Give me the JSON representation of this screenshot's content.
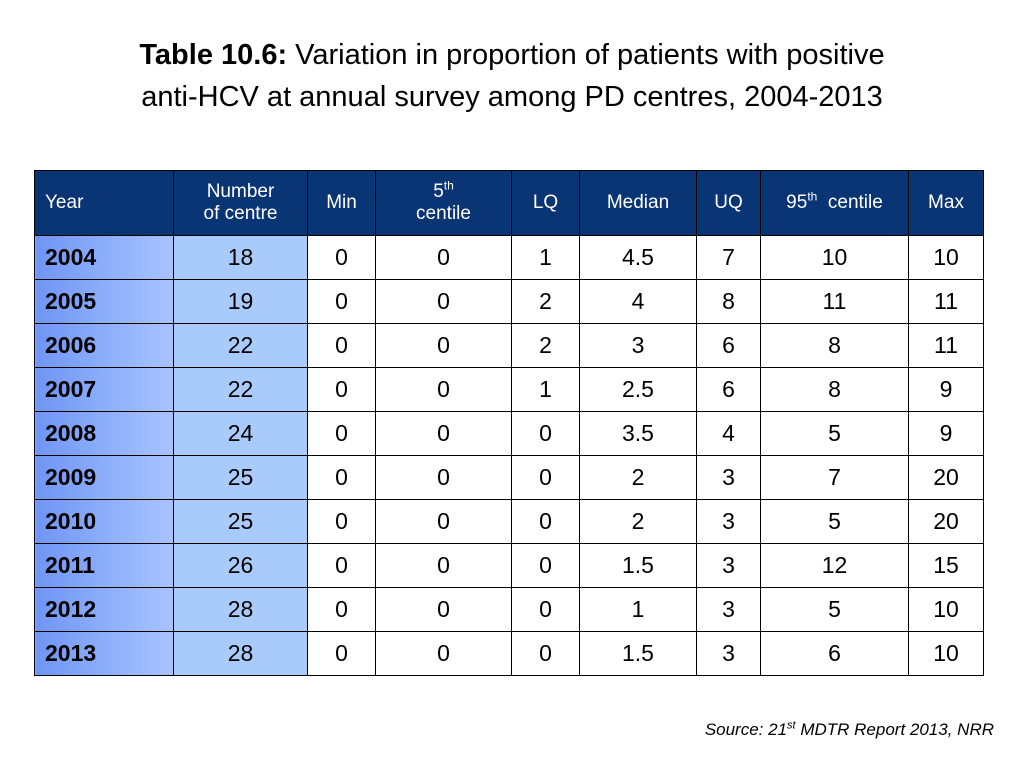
{
  "title": {
    "prefix": "Table 10.6:",
    "line1": "Variation in proportion of patients with positive",
    "line2": "anti-HCV at annual survey among PD centres, 2004-2013"
  },
  "table": {
    "headers": {
      "year": "Year",
      "centres_line1": "Number",
      "centres_line2": "of centre",
      "min": "Min",
      "p5_num": "5",
      "p5_sup": "th",
      "p5_word": "centile",
      "lq": "LQ",
      "median": "Median",
      "uq": "UQ",
      "p95_num": "95",
      "p95_sup": "th",
      "p95_word": "centile",
      "max": "Max"
    },
    "rows": [
      [
        "2004",
        "18",
        "0",
        "0",
        "1",
        "4.5",
        "7",
        "10",
        "10"
      ],
      [
        "2005",
        "19",
        "0",
        "0",
        "2",
        "4",
        "8",
        "11",
        "11"
      ],
      [
        "2006",
        "22",
        "0",
        "0",
        "2",
        "3",
        "6",
        "8",
        "11"
      ],
      [
        "2007",
        "22",
        "0",
        "0",
        "1",
        "2.5",
        "6",
        "8",
        "9"
      ],
      [
        "2008",
        "24",
        "0",
        "0",
        "0",
        "3.5",
        "4",
        "5",
        "9"
      ],
      [
        "2009",
        "25",
        "0",
        "0",
        "0",
        "2",
        "3",
        "7",
        "20"
      ],
      [
        "2010",
        "25",
        "0",
        "0",
        "0",
        "2",
        "3",
        "5",
        "20"
      ],
      [
        "2011",
        "26",
        "0",
        "0",
        "0",
        "1.5",
        "3",
        "12",
        "15"
      ],
      [
        "2012",
        "28",
        "0",
        "0",
        "0",
        "1",
        "3",
        "5",
        "10"
      ],
      [
        "2013",
        "28",
        "0",
        "0",
        "0",
        "1.5",
        "3",
        "6",
        "10"
      ]
    ]
  },
  "source": {
    "prefix": "Source: 21",
    "sup": "st",
    "suffix": " MDTR Report 2013, NRR"
  },
  "colors": {
    "header_bg": "#0a3574",
    "year_col_bg": "#8fb0fb",
    "centres_col_bg": "#a9cbfb"
  }
}
